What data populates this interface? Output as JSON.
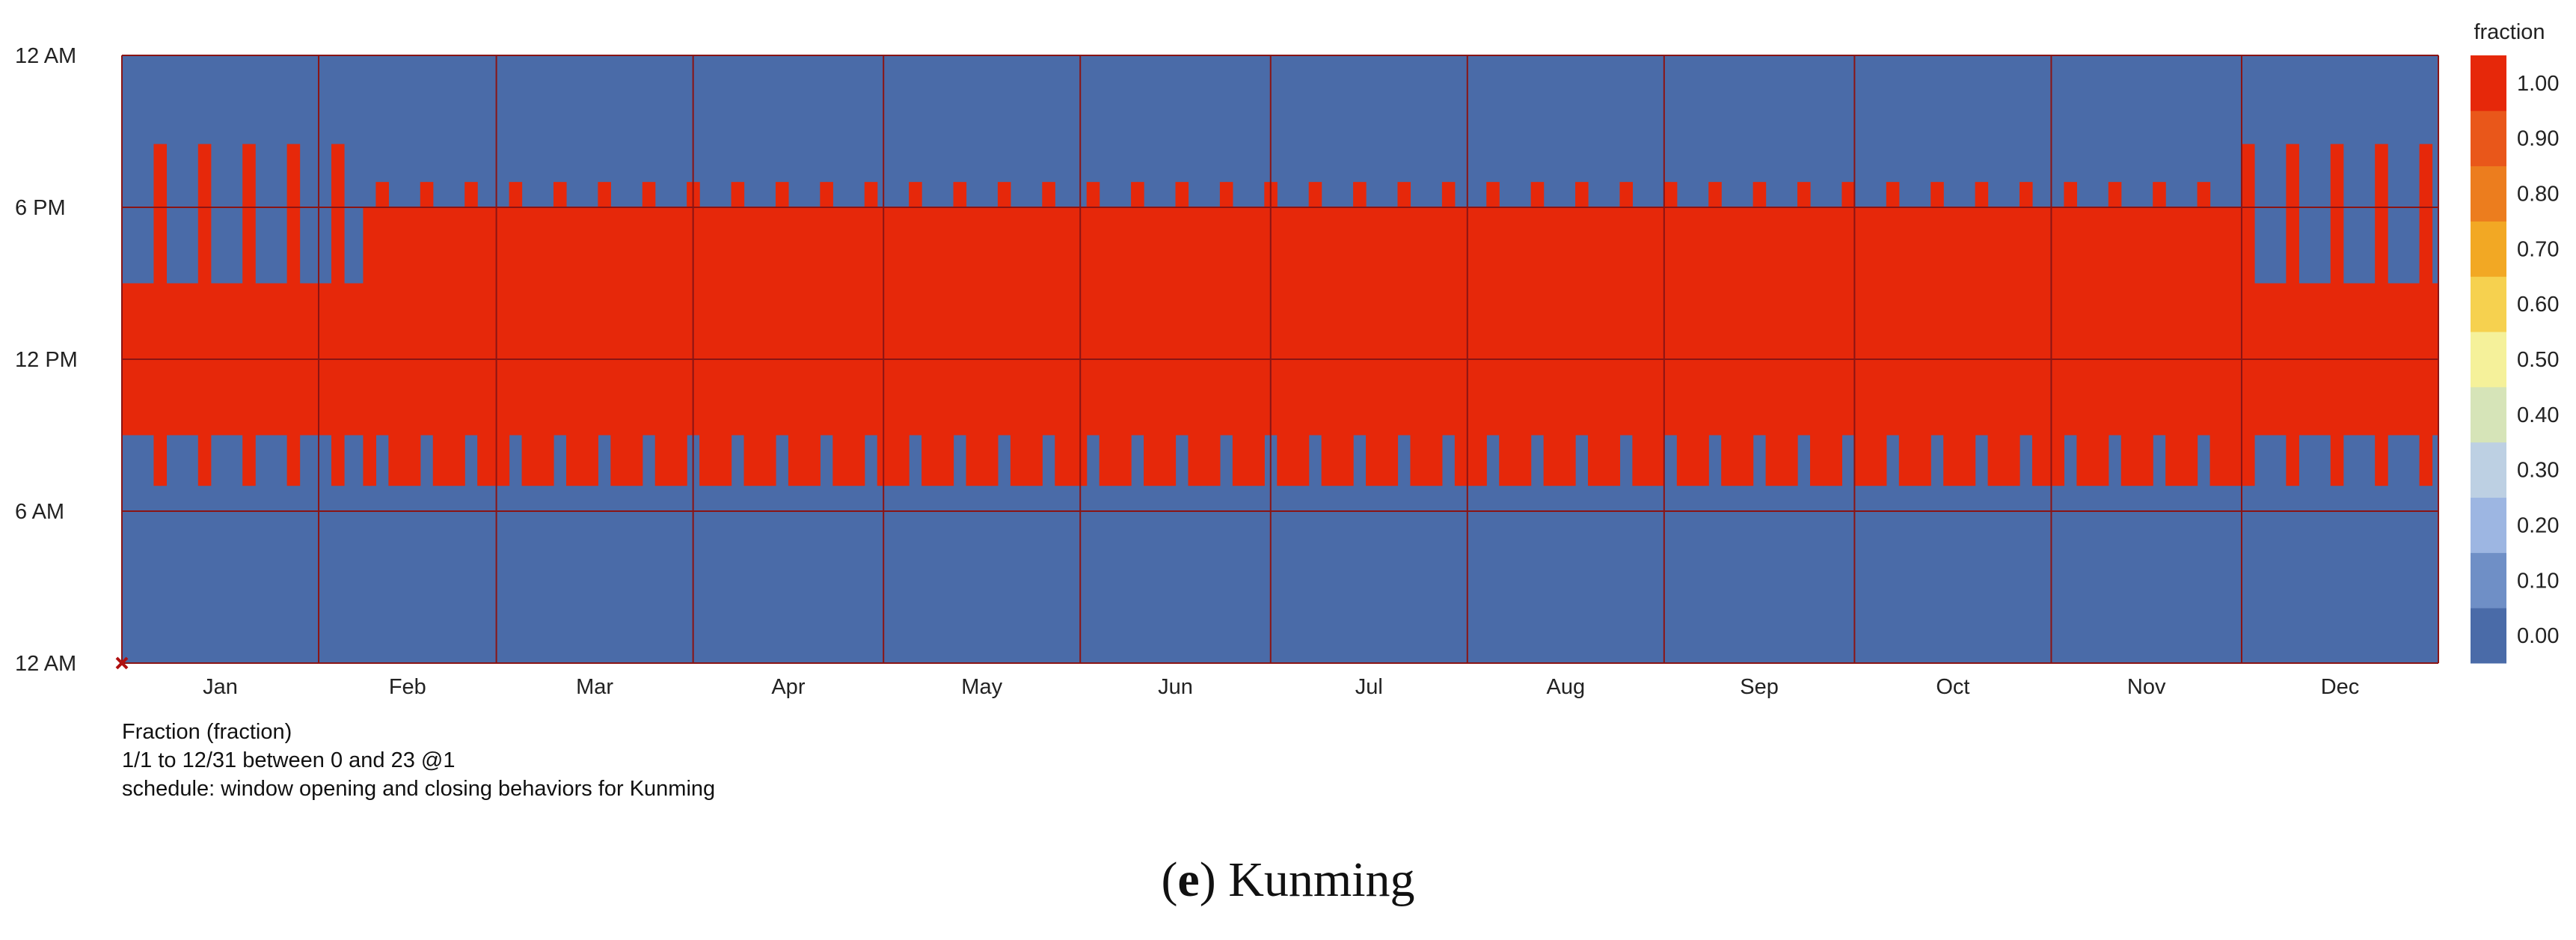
{
  "chart_data": {
    "type": "heatmap",
    "x_axis": {
      "range": [
        "1/1",
        "12/31"
      ],
      "month_tick_labels": [
        "Jan",
        "Feb",
        "Mar",
        "Apr",
        "May",
        "Jun",
        "Jul",
        "Aug",
        "Sep",
        "Oct",
        "Nov",
        "Dec"
      ],
      "month_boundary_days": [
        0,
        31,
        59,
        90,
        120,
        151,
        181,
        212,
        243,
        273,
        304,
        334,
        365
      ],
      "days_in_year": 365
    },
    "y_axis": {
      "range_hours": [
        0,
        24
      ],
      "tick_labels": [
        "12 AM",
        "6 AM",
        "12 PM",
        "6 PM",
        "12 AM"
      ],
      "tick_hours": [
        0,
        6,
        12,
        18,
        24
      ]
    },
    "colorbar": {
      "title": "fraction",
      "tick_labels": [
        "0.00",
        "0.10",
        "0.20",
        "0.30",
        "0.40",
        "0.50",
        "0.60",
        "0.70",
        "0.80",
        "0.90",
        "1.00"
      ],
      "band_colors": [
        "#4a6ba8",
        "#6f8fc6",
        "#9db6e2",
        "#bdd0e3",
        "#d6e4b8",
        "#f5f19a",
        "#f6d14f",
        "#f2a824",
        "#ec7d1e",
        "#e9571a",
        "#e6280a"
      ]
    },
    "series": [
      {
        "name": "window opening and closing behaviors for Kunming",
        "value_closed": 0,
        "value_open": 1,
        "week_start_weekday": 1,
        "schedules": [
          {
            "period": [
              "1/1",
              "2/7"
            ],
            "weekday_open_hours": [
              [
                9,
                15
              ]
            ],
            "weekend_open_hours": [
              [
                7,
                20.5
              ]
            ]
          },
          {
            "period": [
              "2/8",
              "11/30"
            ],
            "weekday_open_hours": [
              [
                7,
                18
              ]
            ],
            "weekend_open_hours": [
              [
                9,
                19
              ]
            ]
          },
          {
            "period": [
              "12/1",
              "12/31"
            ],
            "weekday_open_hours": [
              [
                9,
                15
              ]
            ],
            "weekend_open_hours": [
              [
                7,
                20.5
              ]
            ]
          }
        ]
      }
    ],
    "caption": {
      "line1": "Fraction (fraction)",
      "line2": "1/1 to 12/31 between 0 and 23 @1",
      "line3": "schedule: window opening and closing behaviors for Kunming"
    },
    "figure_label": {
      "open": "(",
      "letter": "e",
      "close": ")",
      "text": " Kunming"
    }
  }
}
